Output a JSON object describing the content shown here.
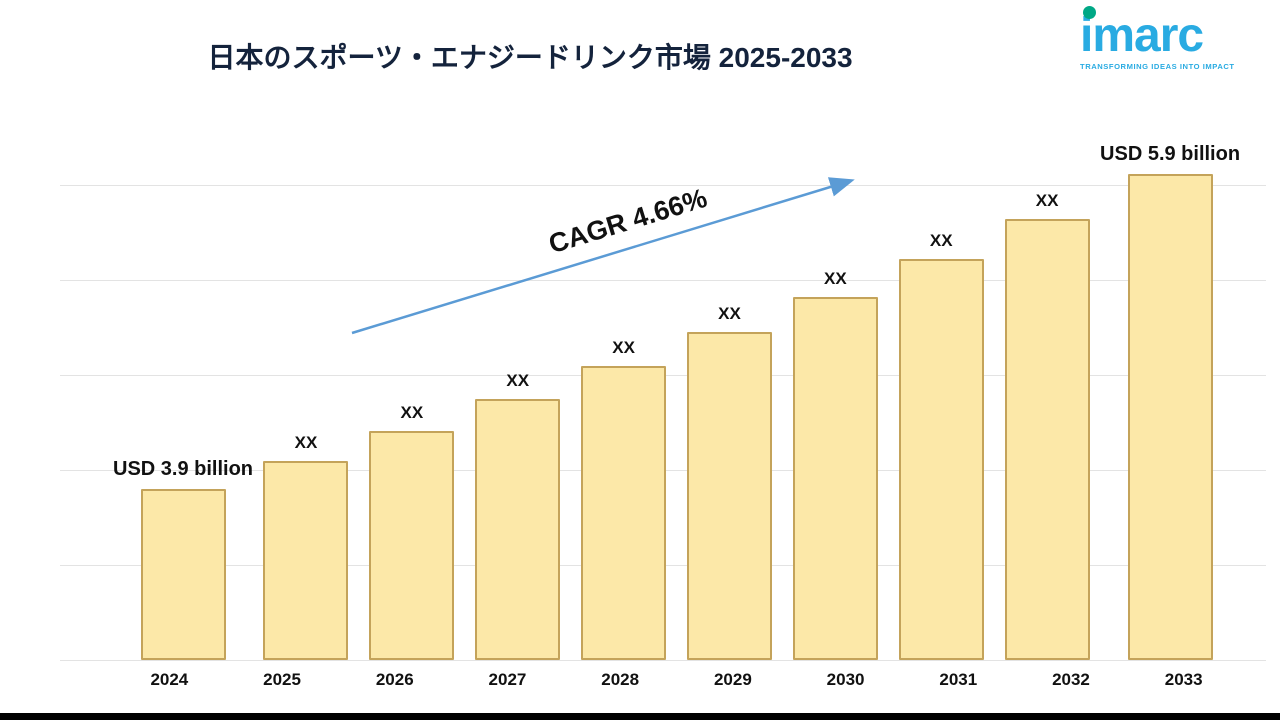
{
  "header": {
    "title": "日本のスポーツ・エナジードリンク市場 2025-2033",
    "logo": {
      "brand": "imarc",
      "tagline": "TRANSFORMING IDEAS INTO IMPACT",
      "brand_color": "#29ABE2",
      "dot_color": "#00A886"
    }
  },
  "chart_data": {
    "type": "bar",
    "title": "日本のスポーツ・エナジードリンク市場 2025-2033",
    "categories": [
      "2024",
      "2025",
      "2026",
      "2027",
      "2028",
      "2029",
      "2030",
      "2031",
      "2032",
      "2033"
    ],
    "values": [
      3.9,
      4.08,
      4.27,
      4.47,
      4.68,
      4.9,
      5.12,
      5.36,
      5.61,
      5.9
    ],
    "bar_labels": [
      "USD 3.9 billion",
      "XX",
      "XX",
      "XX",
      "XX",
      "XX",
      "XX",
      "XX",
      "XX",
      "USD 5.9 billion"
    ],
    "unit": "USD billion",
    "first_value_label": "USD 3.9 billion",
    "last_value_label": "USD 5.9 billion",
    "annotation": {
      "text": "CAGR 4.66%"
    },
    "axis": {
      "min": 2.82,
      "max": 6.1,
      "gridlines": true,
      "legend": "none"
    },
    "colors": {
      "bar_fill": "#FCE8A8",
      "bar_border": "#C4A35A",
      "arrow": "#5B9BD5",
      "title": "#14233c"
    }
  }
}
